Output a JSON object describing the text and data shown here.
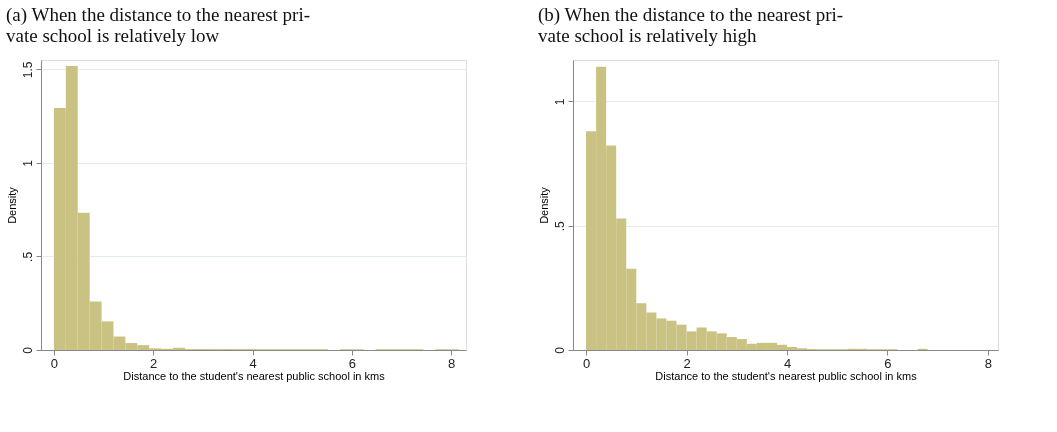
{
  "chart_data": [
    {
      "type": "histogram",
      "title": "(a) When the distance to the nearest pri-\nvate school is relatively low",
      "xlabel": "Distance to the student's nearest public school in kms",
      "ylabel": "Density",
      "color": "#c9c283",
      "bins": [
        0,
        0.24,
        0.48,
        0.72,
        0.96,
        1.2,
        1.44,
        1.68,
        1.92,
        2.16,
        2.4,
        2.64,
        2.88,
        3.12,
        3.36,
        3.6,
        3.84,
        4.08,
        4.32,
        4.56,
        4.8,
        5.04,
        5.28,
        5.52,
        5.76,
        6.0,
        6.24,
        6.48,
        6.72,
        6.96,
        7.2,
        7.44,
        7.68,
        7.92,
        8.16
      ],
      "values": [
        1.294,
        1.518,
        0.734,
        0.259,
        0.153,
        0.072,
        0.037,
        0.026,
        0.009,
        0.007,
        0.012,
        0.005,
        0.005,
        0.005,
        0.005,
        0.005,
        0.005,
        0.004,
        0.004,
        0.004,
        0.004,
        0.004,
        0.004,
        0,
        0.004,
        0.004,
        0,
        0.004,
        0.004,
        0.004,
        0.004,
        0,
        0.004,
        0.004
      ],
      "xlim": [
        -0.26,
        8.3
      ],
      "xticks": [
        0,
        2,
        4,
        6,
        8
      ],
      "ylim": [
        0,
        1.55
      ],
      "yticks": [
        0,
        {
          "value": 0.5,
          "label": ".5"
        },
        1,
        1.5
      ],
      "grid": "y"
    },
    {
      "type": "histogram",
      "title": "(b) When the distance to the nearest pri-\nvate school is relatively high",
      "xlabel": "Distance to the student's nearest public school in kms",
      "ylabel": "Density",
      "color": "#c9c283",
      "bins": [
        0,
        0.2,
        0.4,
        0.6,
        0.8,
        1.0,
        1.2,
        1.4,
        1.6,
        1.8,
        2.0,
        2.2,
        2.4,
        2.6,
        2.8,
        3.0,
        3.2,
        3.4,
        3.6,
        3.8,
        4.0,
        4.2,
        4.4,
        4.6,
        4.8,
        5.0,
        5.2,
        5.4,
        5.6,
        5.8,
        6.0,
        6.2,
        6.4,
        6.6,
        6.8
      ],
      "values": [
        0.88,
        1.14,
        0.823,
        0.529,
        0.327,
        0.188,
        0.151,
        0.127,
        0.118,
        0.102,
        0.075,
        0.091,
        0.075,
        0.067,
        0.052,
        0.044,
        0.025,
        0.029,
        0.029,
        0.021,
        0.012,
        0.007,
        0.004,
        0.003,
        0.003,
        0.003,
        0.005,
        0.005,
        0.003,
        0.003,
        0.003,
        0,
        0,
        0.005
      ],
      "xlim": [
        -0.26,
        8.2
      ],
      "xticks": [
        0,
        2,
        4,
        6,
        8
      ],
      "ylim": [
        0,
        1.167
      ],
      "yticks": [
        0,
        {
          "value": 0.5,
          "label": ".5"
        },
        1
      ],
      "grid": "y"
    }
  ]
}
